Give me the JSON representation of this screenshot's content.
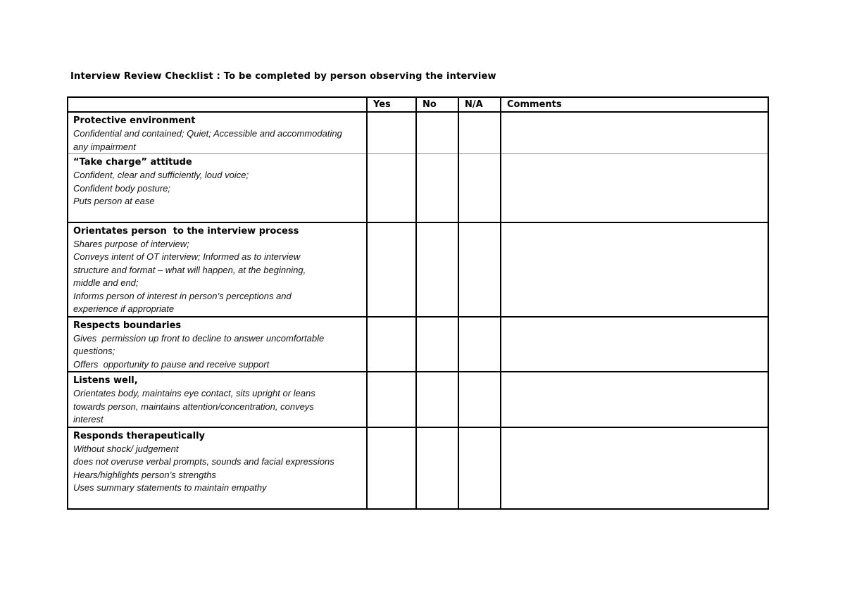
{
  "page": {
    "background": "#ffffff",
    "border_color": "#000000",
    "thin_separator_color": "#8a8a8a",
    "text_color": "#000000"
  },
  "title": "Interview Review Checklist : To be completed by person observing the interview",
  "table": {
    "headers": [
      "",
      "Yes",
      "No",
      "N/A",
      "Comments"
    ],
    "rows": [
      {
        "heading": "Protective environment",
        "lines": [
          "Confidential and contained; Quiet; Accessible and accommodating",
          "any impairment"
        ],
        "yes": "",
        "no": "",
        "na": "",
        "comments": ""
      },
      {
        "heading": "“Take charge” attitude",
        "lines": [
          "Confident, clear and sufficiently, loud voice;",
          "Confident body posture;",
          "Puts person at ease"
        ],
        "yes": "",
        "no": "",
        "na": "",
        "comments": ""
      },
      {
        "heading": "Orientates person  to the interview process",
        "lines": [
          "Shares purpose of interview;",
          "Conveys intent of OT interview; Informed as to interview",
          "structure and format – what will happen, at the beginning,",
          "middle and end;",
          "Informs person of interest in person’s perceptions and",
          "experience if appropriate"
        ],
        "yes": "",
        "no": "",
        "na": "",
        "comments": ""
      },
      {
        "heading": "Respects boundaries",
        "lines": [
          "Gives  permission up front to decline to answer uncomfortable",
          "questions;",
          "Offers  opportunity to pause and receive support"
        ],
        "yes": "",
        "no": "",
        "na": "",
        "comments": ""
      },
      {
        "heading": "Listens well,",
        "lines": [
          "Orientates body, maintains eye contact, sits upright or leans",
          "towards person, maintains attention/concentration, conveys",
          "interest"
        ],
        "yes": "",
        "no": "",
        "na": "",
        "comments": ""
      },
      {
        "heading": "Responds therapeutically",
        "lines": [
          "Without shock/ judgement",
          "does not overuse verbal prompts, sounds and facial expressions",
          "Hears/highlights person’s strengths",
          "Uses summary statements to maintain empathy"
        ],
        "yes": "",
        "no": "",
        "na": "",
        "comments": ""
      }
    ]
  }
}
